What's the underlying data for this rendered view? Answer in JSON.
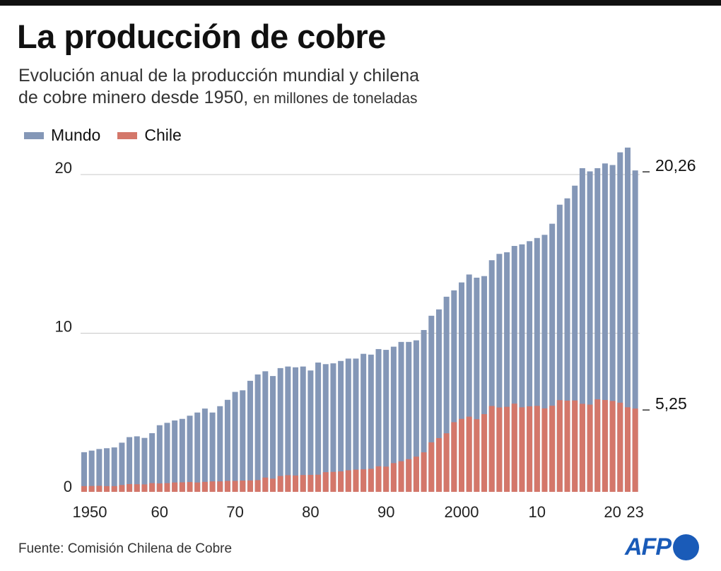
{
  "title": "La producción de cobre",
  "subtitle_line1": "Evolución anual de la producción mundial y chilena",
  "subtitle_line2": "de cobre minero desde 1950,",
  "subtitle_unit": "en millones de toneladas",
  "source": "Fuente: Comisión Chilena de Cobre",
  "logo_text": "AFP",
  "colors": {
    "mundo": "#8497b7",
    "chile": "#d4776a",
    "logo": "#1a5bb8"
  },
  "chart_data": {
    "type": "bar",
    "stacking": "overlay",
    "x_start": 1950,
    "x_end": 2023,
    "ylim": [
      0,
      22
    ],
    "grid": true,
    "legend_position": "top-left",
    "y_ticks": [
      {
        "value": 0,
        "label": "0"
      },
      {
        "value": 10,
        "label": "10"
      },
      {
        "value": 20,
        "label": "20"
      }
    ],
    "x_ticks": [
      {
        "year": 1950,
        "label": "1950"
      },
      {
        "year": 1960,
        "label": "60"
      },
      {
        "year": 1970,
        "label": "70"
      },
      {
        "year": 1980,
        "label": "80"
      },
      {
        "year": 1990,
        "label": "90"
      },
      {
        "year": 2000,
        "label": "2000"
      },
      {
        "year": 2010,
        "label": "10"
      },
      {
        "year": 2020,
        "label": "20"
      },
      {
        "year": 2023,
        "label": "23"
      }
    ],
    "series": [
      {
        "name": "Mundo",
        "values": [
          2.5,
          2.6,
          2.7,
          2.75,
          2.8,
          3.1,
          3.45,
          3.5,
          3.4,
          3.7,
          4.2,
          4.35,
          4.5,
          4.6,
          4.8,
          5.0,
          5.25,
          5.0,
          5.4,
          5.8,
          6.3,
          6.4,
          7.0,
          7.4,
          7.6,
          7.3,
          7.8,
          7.9,
          7.85,
          7.9,
          7.65,
          8.15,
          8.05,
          8.1,
          8.25,
          8.4,
          8.4,
          8.7,
          8.65,
          9.0,
          8.95,
          9.15,
          9.45,
          9.45,
          9.55,
          10.2,
          11.1,
          11.5,
          12.3,
          12.7,
          13.2,
          13.7,
          13.5,
          13.6,
          14.6,
          15.0,
          15.1,
          15.5,
          15.6,
          15.8,
          16.0,
          16.2,
          16.9,
          18.1,
          18.5,
          19.3,
          20.4,
          20.2,
          20.4,
          20.7,
          20.6,
          21.4,
          21.7,
          20.26
        ]
      },
      {
        "name": "Chile",
        "values": [
          0.36,
          0.37,
          0.38,
          0.36,
          0.36,
          0.43,
          0.49,
          0.48,
          0.47,
          0.55,
          0.53,
          0.55,
          0.59,
          0.6,
          0.62,
          0.59,
          0.63,
          0.66,
          0.66,
          0.69,
          0.69,
          0.71,
          0.72,
          0.74,
          0.9,
          0.83,
          1.0,
          1.05,
          1.03,
          1.06,
          1.07,
          1.08,
          1.24,
          1.26,
          1.29,
          1.36,
          1.4,
          1.42,
          1.45,
          1.61,
          1.59,
          1.81,
          1.93,
          2.06,
          2.22,
          2.49,
          3.12,
          3.39,
          3.69,
          4.39,
          4.6,
          4.74,
          4.58,
          4.9,
          5.41,
          5.32,
          5.36,
          5.56,
          5.33,
          5.39,
          5.42,
          5.26,
          5.43,
          5.78,
          5.75,
          5.76,
          5.55,
          5.5,
          5.83,
          5.79,
          5.73,
          5.62,
          5.33,
          5.25
        ]
      }
    ],
    "annotations": [
      {
        "series": "Mundo",
        "year": 2023,
        "label": "20,26"
      },
      {
        "series": "Chile",
        "year": 2023,
        "label": "5,25"
      }
    ]
  }
}
